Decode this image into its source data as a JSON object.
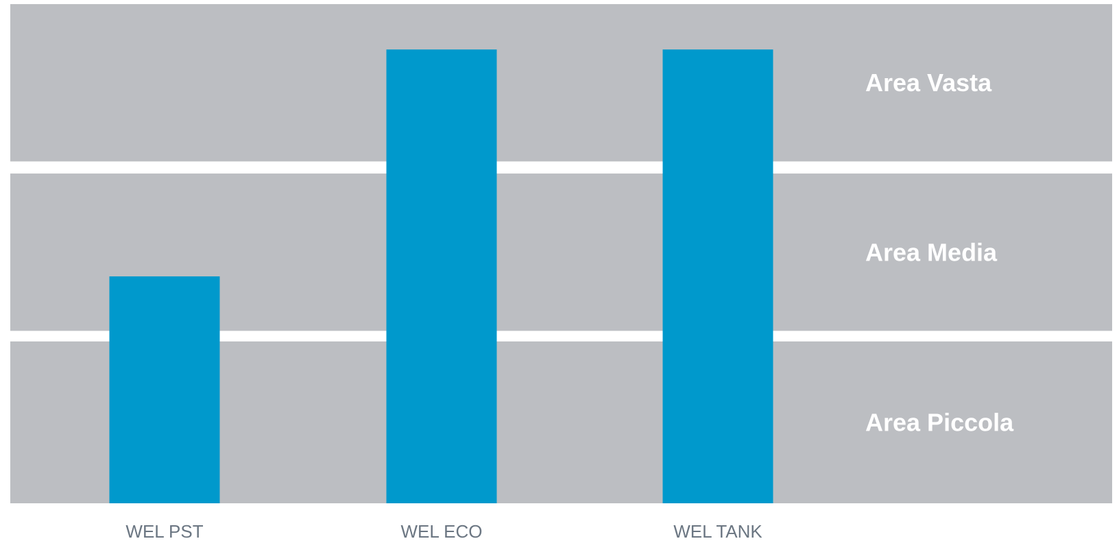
{
  "chart_data": {
    "type": "bar",
    "categories": [
      "WEL PST",
      "WEL ECO",
      "WEL TANK"
    ],
    "values": [
      1.5,
      3,
      3
    ],
    "ylim": [
      0,
      3.3
    ],
    "grid": false,
    "bands": [
      {
        "label": "Area Piccola",
        "from": 0,
        "to": 1.07
      },
      {
        "label": "Area Media",
        "from": 1.14,
        "to": 2.18
      },
      {
        "label": "Area Vasta",
        "from": 2.26,
        "to": 3.3
      }
    ],
    "colors": {
      "bar": "#0099cc",
      "band": "#bcbec2",
      "band_label": "#ffffff",
      "category_label": "#6b7682"
    }
  }
}
